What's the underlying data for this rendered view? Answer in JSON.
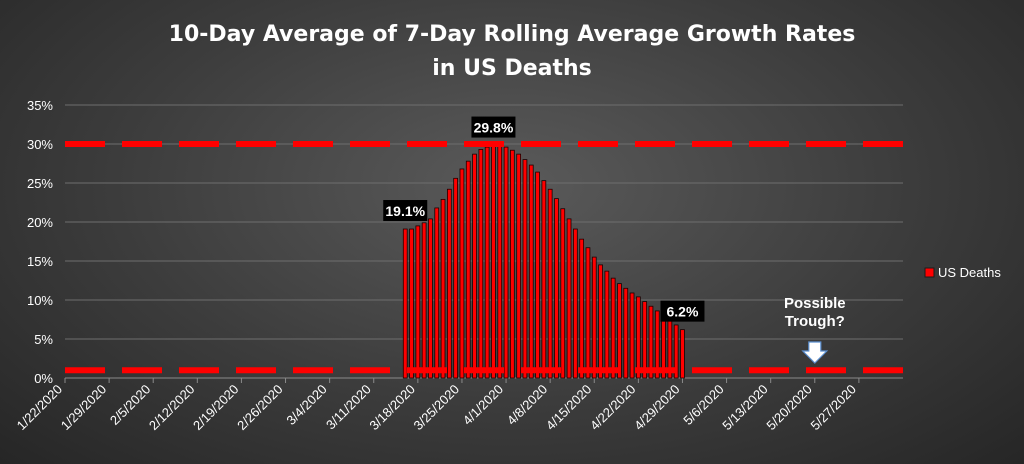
{
  "chart_data": {
    "type": "bar",
    "title": "10-Day Average of 7-Day Rolling Average Growth Rates",
    "subtitle": "in US Deaths",
    "series": [
      {
        "name": "US Deaths",
        "color": "#ff0000"
      }
    ],
    "legend_position": "right",
    "ylim": [
      0,
      0.35
    ],
    "y_ticks": [
      "0%",
      "5%",
      "10%",
      "15%",
      "20%",
      "25%",
      "30%",
      "35%"
    ],
    "x_tick_labels": [
      "1/22/2020",
      "1/29/2020",
      "2/5/2020",
      "2/12/2020",
      "2/19/2020",
      "2/26/2020",
      "3/4/2020",
      "3/11/2020",
      "3/18/2020",
      "3/25/2020",
      "4/1/2020",
      "4/8/2020",
      "4/15/2020",
      "4/22/2020",
      "4/29/2020",
      "5/6/2020",
      "5/13/2020",
      "5/20/2020",
      "5/27/2020"
    ],
    "x_start": "2020-01-22",
    "x_end": "2020-06-03",
    "points": [
      [
        "2020-03-16",
        0.191
      ],
      [
        "2020-03-17",
        0.191
      ],
      [
        "2020-03-18",
        0.195
      ],
      [
        "2020-03-19",
        0.199
      ],
      [
        "2020-03-20",
        0.204
      ],
      [
        "2020-03-21",
        0.218
      ],
      [
        "2020-03-22",
        0.229
      ],
      [
        "2020-03-23",
        0.242
      ],
      [
        "2020-03-24",
        0.256
      ],
      [
        "2020-03-25",
        0.268
      ],
      [
        "2020-03-26",
        0.278
      ],
      [
        "2020-03-27",
        0.287
      ],
      [
        "2020-03-28",
        0.293
      ],
      [
        "2020-03-29",
        0.296
      ],
      [
        "2020-03-30",
        0.298
      ],
      [
        "2020-03-31",
        0.298
      ],
      [
        "2020-04-01",
        0.296
      ],
      [
        "2020-04-02",
        0.292
      ],
      [
        "2020-04-03",
        0.287
      ],
      [
        "2020-04-04",
        0.28
      ],
      [
        "2020-04-05",
        0.273
      ],
      [
        "2020-04-06",
        0.264
      ],
      [
        "2020-04-07",
        0.253
      ],
      [
        "2020-04-08",
        0.242
      ],
      [
        "2020-04-09",
        0.23
      ],
      [
        "2020-04-10",
        0.217
      ],
      [
        "2020-04-11",
        0.204
      ],
      [
        "2020-04-12",
        0.191
      ],
      [
        "2020-04-13",
        0.178
      ],
      [
        "2020-04-14",
        0.167
      ],
      [
        "2020-04-15",
        0.155
      ],
      [
        "2020-04-16",
        0.145
      ],
      [
        "2020-04-17",
        0.137
      ],
      [
        "2020-04-18",
        0.128
      ],
      [
        "2020-04-19",
        0.121
      ],
      [
        "2020-04-20",
        0.115
      ],
      [
        "2020-04-21",
        0.109
      ],
      [
        "2020-04-22",
        0.104
      ],
      [
        "2020-04-23",
        0.098
      ],
      [
        "2020-04-24",
        0.092
      ],
      [
        "2020-04-25",
        0.086
      ],
      [
        "2020-04-26",
        0.08
      ],
      [
        "2020-04-27",
        0.074
      ],
      [
        "2020-04-28",
        0.068
      ],
      [
        "2020-04-29",
        0.062
      ]
    ],
    "reference_lines": [
      {
        "y": 0.3,
        "color": "#ff0000",
        "style": "dashed"
      },
      {
        "y": 0.01,
        "color": "#ff0000",
        "style": "dashed"
      }
    ],
    "data_labels": [
      {
        "date": "2020-03-16",
        "y": 0.191,
        "text": "19.1%"
      },
      {
        "date": "2020-03-30",
        "y": 0.298,
        "text": "29.8%"
      },
      {
        "date": "2020-04-29",
        "y": 0.062,
        "text": "6.2%"
      }
    ],
    "annotation": {
      "lines": [
        "Possible",
        "Trough?"
      ],
      "date": "2020-05-20",
      "arrow": "down"
    }
  }
}
